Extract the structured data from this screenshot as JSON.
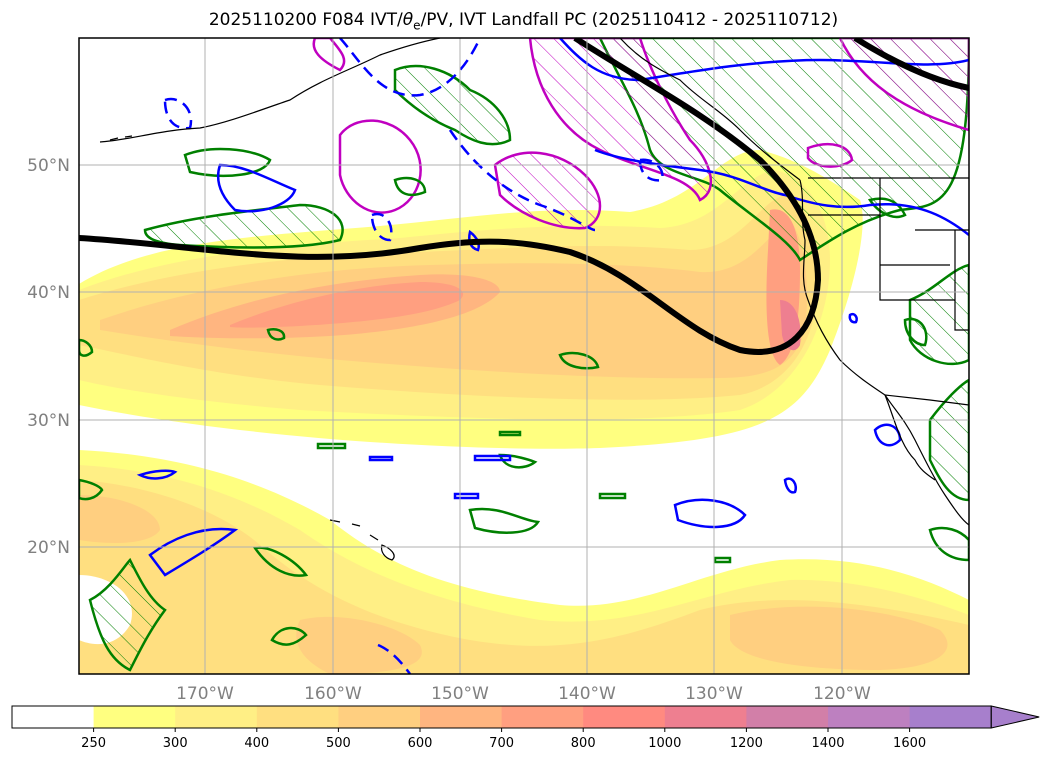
{
  "title": {
    "prefix": "2025110200 F084 IVT/",
    "theta": "θ",
    "theta_sub": "e",
    "suffix": "/PV, IVT Landfall PC (2025110412 - 2025110712)"
  },
  "map": {
    "lon_labels": [
      "170°W",
      "160°W",
      "150°W",
      "140°W",
      "130°W",
      "120°W"
    ],
    "lat_labels": [
      "50°N",
      "40°N",
      "30°N",
      "20°N"
    ],
    "grid": true
  },
  "colorbar": {
    "levels": [
      "250",
      "300",
      "400",
      "500",
      "600",
      "700",
      "800",
      "1000",
      "1200",
      "1400",
      "1600"
    ],
    "colors": [
      "#ffffff",
      "#ffff80",
      "#ffef85",
      "#ffdf80",
      "#ffcf80",
      "#ffb580",
      "#ff9f80",
      "#ff8a80",
      "#ee7f90",
      "#d27fa8",
      "#bd80c0",
      "#a77fcc"
    ],
    "extend": "max"
  },
  "colors": {
    "pv_contour": "#008000",
    "theta_contour": "#0000ff",
    "pv_magenta": "#c000c0",
    "landfall_pc": "#000000"
  }
}
